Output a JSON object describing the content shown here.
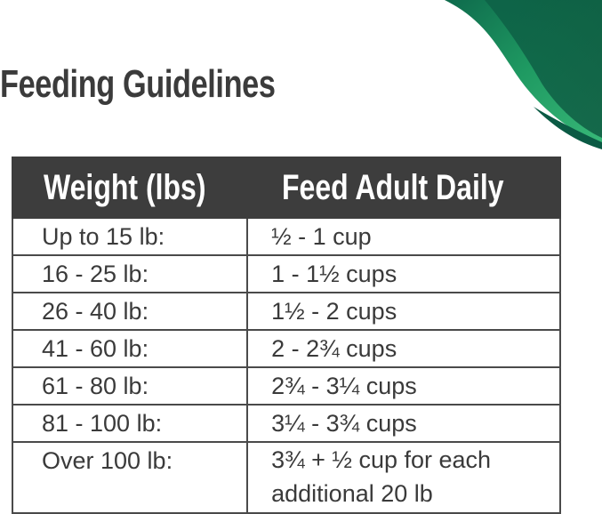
{
  "title": "Feeding Guidelines",
  "colors": {
    "header_bg": "#3d3d3d",
    "accent_green": "#1e9a5e",
    "dark_green": "#0b5a44"
  },
  "decoration": "green-swoosh",
  "table": {
    "headers": [
      "Weight (lbs)",
      "Feed Adult Daily"
    ],
    "rows": [
      [
        "Up to 15 lb:",
        "½ - 1 cup"
      ],
      [
        "16 - 25 lb:",
        "1 - 1½ cups"
      ],
      [
        "26 - 40 lb:",
        "1½ - 2 cups"
      ],
      [
        "41 - 60 lb:",
        "2 - 2¾ cups"
      ],
      [
        "61 - 80 lb:",
        "2¾ - 3¼ cups"
      ],
      [
        "81 - 100 lb:",
        "3¼ - 3¾ cups"
      ],
      [
        "Over 100 lb:",
        "3¾ + ½ cup for each additional 20 lb"
      ]
    ]
  }
}
